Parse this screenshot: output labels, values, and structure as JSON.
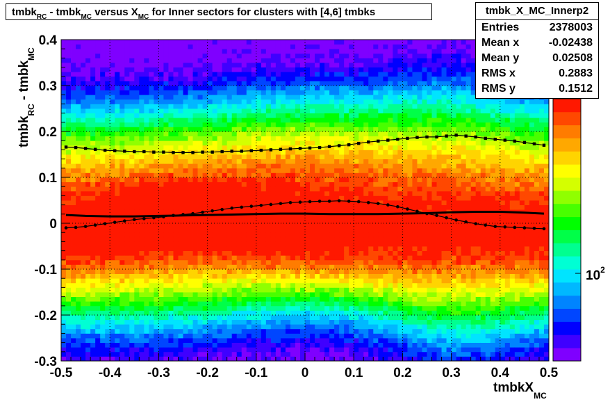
{
  "title": {
    "parts": [
      {
        "text": "tmbk",
        "sub": "RC"
      },
      {
        "text": " - tmbk",
        "sub": "MC"
      },
      {
        "text": " versus X",
        "sub": "MC"
      },
      {
        "text": " for Inner sectors for clusters with [4,6] tmbks",
        "sub": ""
      }
    ]
  },
  "stats": {
    "name": "tmbk_X_MC_Innerp2",
    "rows": [
      {
        "label": "Entries",
        "value": "2378003"
      },
      {
        "label": "Mean x",
        "value": "-0.02438"
      },
      {
        "label": "Mean y",
        "value": "0.02508"
      },
      {
        "label": "RMS x",
        "value": "0.2883"
      },
      {
        "label": "RMS y",
        "value": "0.1512"
      }
    ]
  },
  "colors": {
    "palette": [
      "#7f00ff",
      "#3f00ff",
      "#0000ff",
      "#0046ff",
      "#0084ff",
      "#00b8ff",
      "#00e4ff",
      "#00ffd4",
      "#00ff90",
      "#00ff48",
      "#00ff00",
      "#48ff00",
      "#90ff00",
      "#d4ff00",
      "#ffff00",
      "#ffd400",
      "#ffa800",
      "#ff7c00",
      "#ff4800",
      "#ff1800"
    ],
    "profile": "#000000"
  },
  "chart_data": {
    "type": "heatmap",
    "xlabel": "tmbkX",
    "xlabel_sub": "MC",
    "ylabel": "tmbk",
    "ylabel_sub1": "RC",
    "ylabel_mid": " - tmbk",
    "ylabel_sub2": "MC",
    "xlim": [
      -0.5,
      0.5
    ],
    "ylim": [
      -0.3,
      0.4
    ],
    "x_ticks": [
      "-0.5",
      "-0.4",
      "-0.3",
      "-0.2",
      "-0.1",
      "0",
      "0.1",
      "0.2",
      "0.3",
      "0.4",
      "0.5"
    ],
    "y_ticks": [
      "-0.3",
      "-0.2",
      "-0.1",
      "0",
      "0.1",
      "0.2",
      "0.3",
      "0.4"
    ],
    "grid": true,
    "z_scale": "log",
    "z_label": "10",
    "z_label_exp": "2",
    "series": [
      {
        "x": [
          -0.49,
          -0.47,
          -0.45,
          -0.43,
          -0.41,
          -0.39,
          -0.37,
          -0.35,
          -0.33,
          -0.31,
          -0.29,
          -0.27,
          -0.25,
          -0.23,
          -0.21,
          -0.19,
          -0.17,
          -0.15,
          -0.13,
          -0.11,
          -0.09,
          -0.07,
          -0.05,
          -0.03,
          -0.01,
          0.01,
          0.03,
          0.05,
          0.07,
          0.09,
          0.11,
          0.13,
          0.15,
          0.17,
          0.19,
          0.21,
          0.23,
          0.25,
          0.27,
          0.29,
          0.31,
          0.33,
          0.35,
          0.37,
          0.39,
          0.41,
          0.43,
          0.45,
          0.47,
          0.49
        ],
        "y": [
          0.166,
          0.165,
          0.163,
          0.161,
          0.159,
          0.158,
          0.157,
          0.156,
          0.156,
          0.155,
          0.155,
          0.154,
          0.154,
          0.154,
          0.155,
          0.155,
          0.156,
          0.157,
          0.157,
          0.158,
          0.159,
          0.16,
          0.161,
          0.162,
          0.163,
          0.164,
          0.165,
          0.167,
          0.169,
          0.171,
          0.174,
          0.177,
          0.179,
          0.181,
          0.183,
          0.185,
          0.187,
          0.188,
          0.188,
          0.19,
          0.192,
          0.19,
          0.188,
          0.185,
          0.183,
          0.181,
          0.179,
          0.176,
          0.173,
          0.17
        ]
      },
      {
        "x": [
          -0.49,
          -0.47,
          -0.45,
          -0.43,
          -0.41,
          -0.39,
          -0.37,
          -0.35,
          -0.33,
          -0.31,
          -0.29,
          -0.27,
          -0.25,
          -0.23,
          -0.21,
          -0.19,
          -0.17,
          -0.15,
          -0.13,
          -0.11,
          -0.09,
          -0.07,
          -0.05,
          -0.03,
          -0.01,
          0.01,
          0.03,
          0.05,
          0.07,
          0.09,
          0.11,
          0.13,
          0.15,
          0.17,
          0.19,
          0.21,
          0.23,
          0.25,
          0.27,
          0.29,
          0.31,
          0.33,
          0.35,
          0.37,
          0.39,
          0.41,
          0.43,
          0.45,
          0.47,
          0.49
        ],
        "y": [
          -0.01,
          -0.009,
          -0.007,
          -0.004,
          -0.001,
          0.002,
          0.005,
          0.008,
          0.01,
          0.012,
          0.014,
          0.017,
          0.019,
          0.021,
          0.024,
          0.027,
          0.03,
          0.033,
          0.035,
          0.037,
          0.039,
          0.041,
          0.043,
          0.045,
          0.046,
          0.047,
          0.048,
          0.048,
          0.049,
          0.048,
          0.047,
          0.045,
          0.043,
          0.04,
          0.036,
          0.031,
          0.026,
          0.021,
          0.017,
          0.012,
          0.007,
          0.003,
          -0.001,
          -0.004,
          -0.007,
          -0.008,
          -0.009,
          -0.01,
          -0.011,
          -0.012
        ]
      },
      {
        "x": [
          -0.49,
          -0.45,
          -0.4,
          -0.35,
          -0.3,
          -0.25,
          -0.2,
          -0.15,
          -0.1,
          -0.05,
          0,
          0.05,
          0.1,
          0.15,
          0.2,
          0.25,
          0.3,
          0.35,
          0.4,
          0.45,
          0.49
        ],
        "y": [
          0.018,
          0.016,
          0.015,
          0.015,
          0.016,
          0.017,
          0.018,
          0.019,
          0.02,
          0.021,
          0.021,
          0.02,
          0.02,
          0.02,
          0.021,
          0.022,
          0.024,
          0.025,
          0.025,
          0.023,
          0.021
        ]
      }
    ]
  }
}
